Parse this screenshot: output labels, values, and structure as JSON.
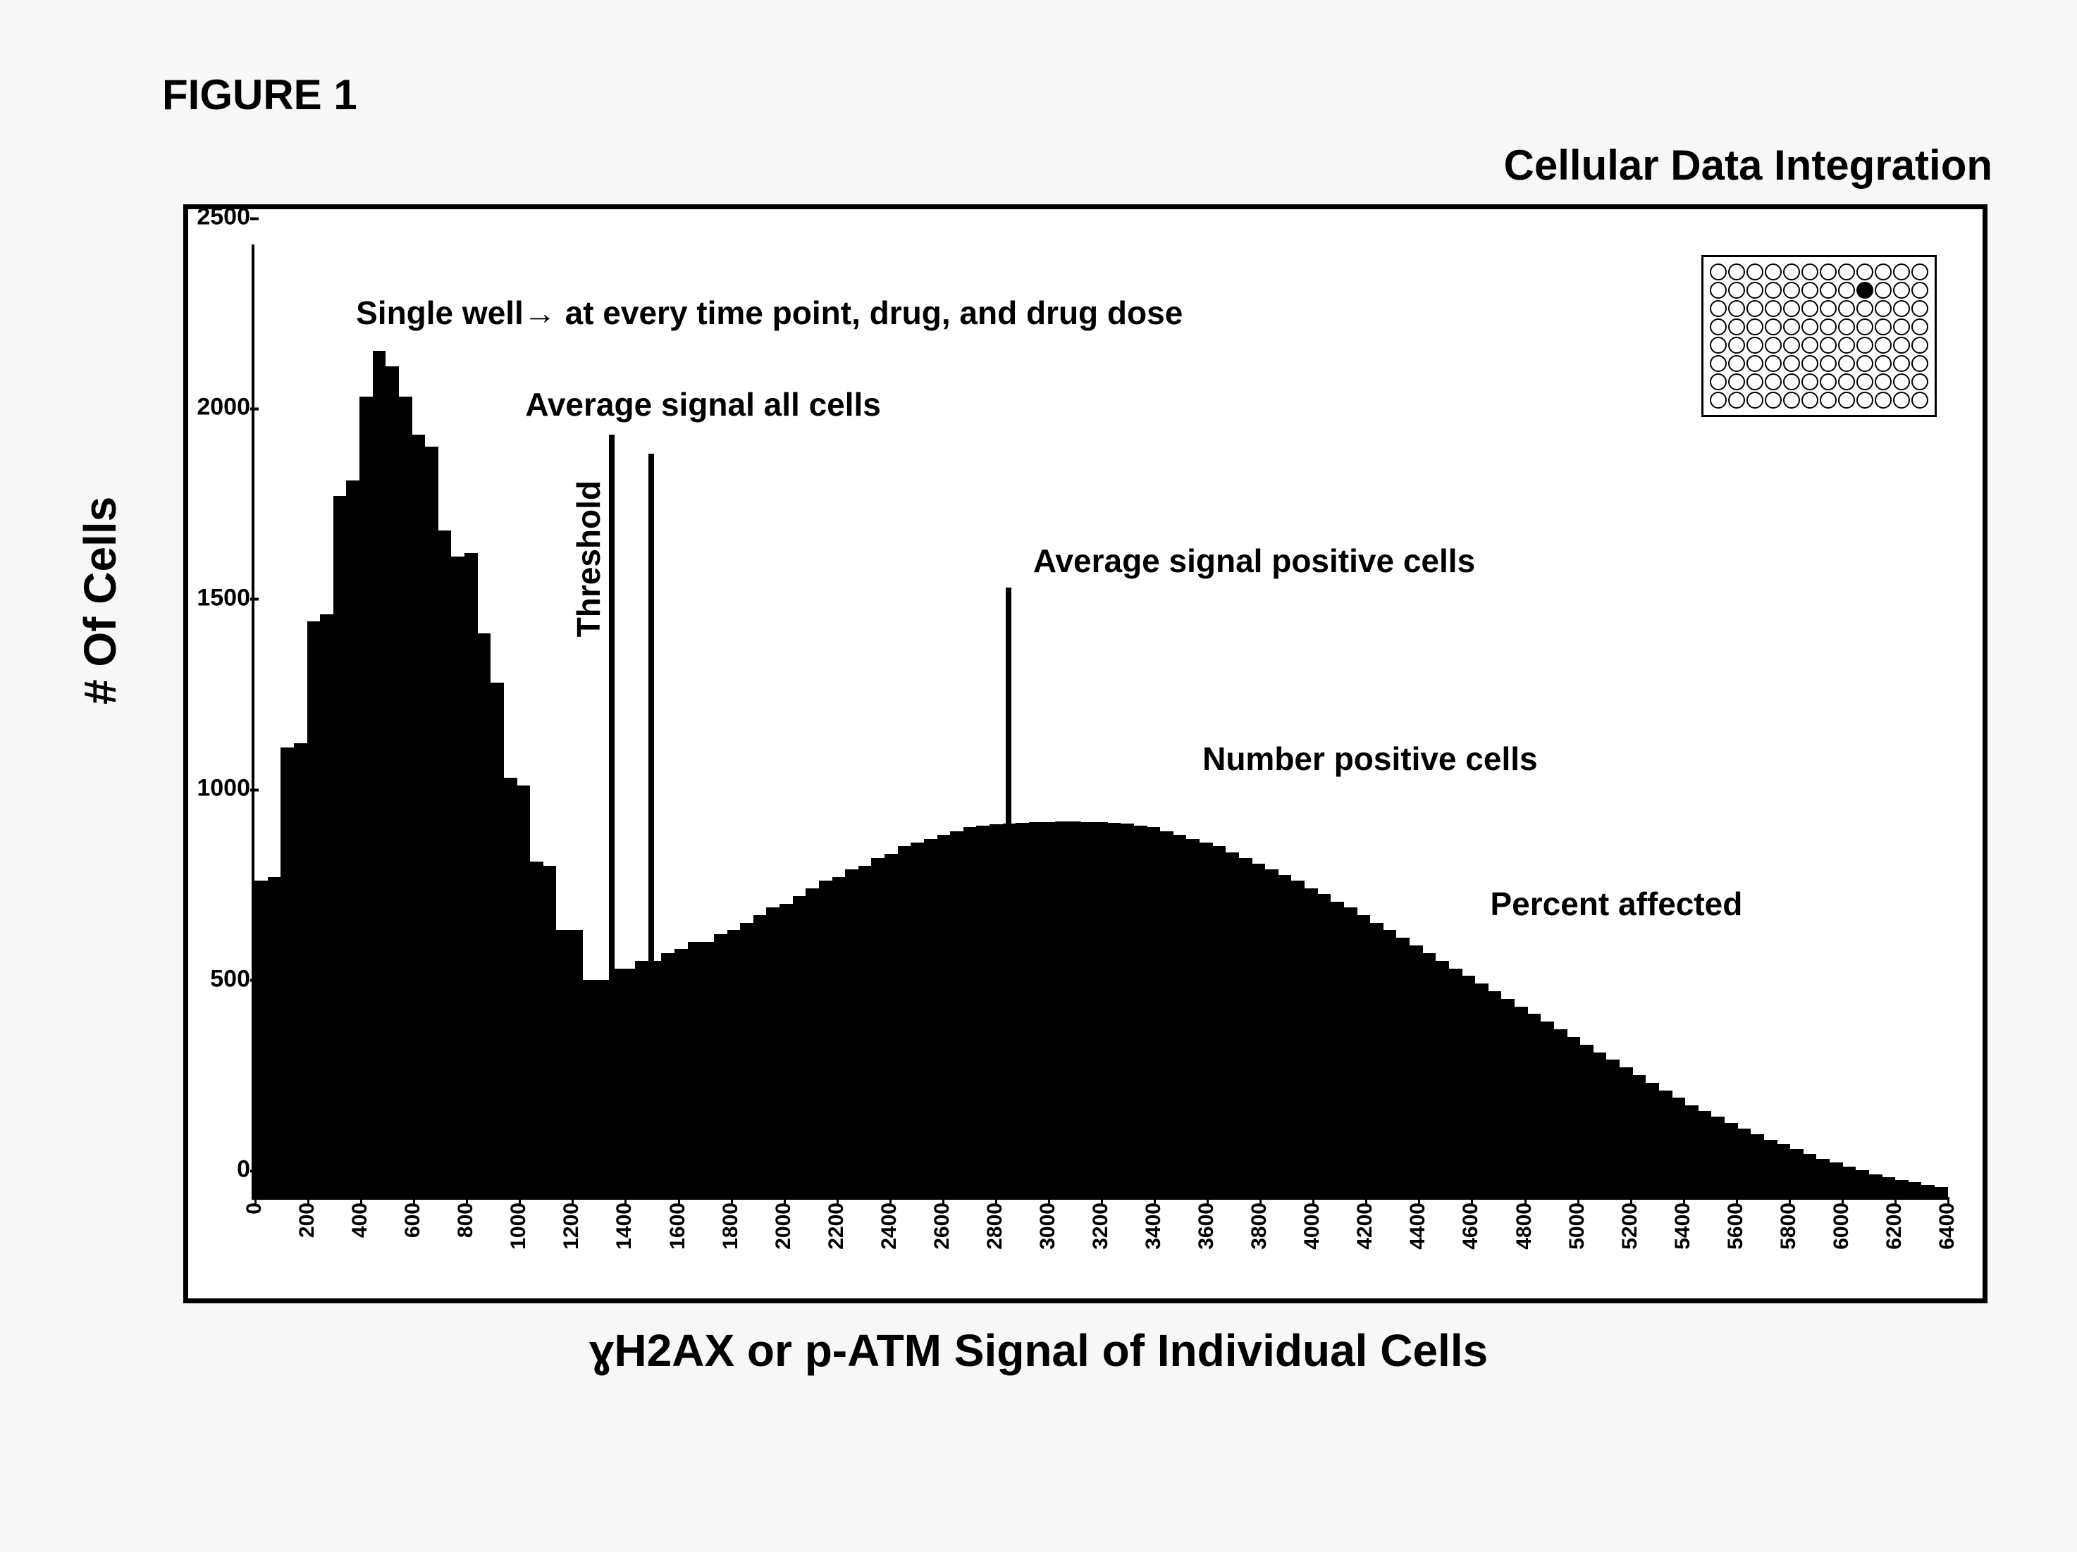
{
  "figure_label": "FIGURE 1",
  "supra_title": "Cellular Data Integration",
  "xlabel": "ɣH2AX or p-ATM Signal of Individual Cells",
  "ylabel": "# Of Cells",
  "colors": {
    "page_bg": "#f7f7f7",
    "frame_border": "#000000",
    "bar_fill": "#000000",
    "axis": "#000000",
    "text": "#000000"
  },
  "chart": {
    "type": "histogram",
    "ylim": [
      0,
      2500
    ],
    "ytick_step": 500,
    "yticks": [
      0,
      500,
      1000,
      1500,
      2000,
      2500
    ],
    "xlim": [
      0,
      6400
    ],
    "xtick_step": 200,
    "xticks": [
      0,
      200,
      400,
      600,
      800,
      1000,
      1200,
      1400,
      1600,
      1800,
      2000,
      2200,
      2400,
      2600,
      2800,
      3000,
      3200,
      3400,
      3600,
      3800,
      4000,
      4200,
      4400,
      4600,
      4800,
      5000,
      5200,
      5400,
      5600,
      5800,
      6000,
      6200,
      6400
    ],
    "bin_edges_step": 100,
    "bar_heights": [
      830,
      840,
      1180,
      1190,
      1510,
      1530,
      1840,
      1880,
      2100,
      2220,
      2180,
      2100,
      2000,
      1970,
      1750,
      1680,
      1690,
      1480,
      1350,
      1100,
      1080,
      880,
      870,
      700,
      700,
      570,
      570,
      600,
      600,
      620,
      620,
      640,
      650,
      670,
      670,
      690,
      700,
      720,
      740,
      760,
      770,
      790,
      810,
      830,
      840,
      860,
      870,
      890,
      900,
      920,
      930,
      940,
      950,
      960,
      970,
      975,
      978,
      980,
      982,
      983,
      984,
      985,
      985,
      984,
      983,
      982,
      980,
      975,
      970,
      960,
      950,
      940,
      930,
      920,
      905,
      890,
      875,
      860,
      845,
      830,
      810,
      795,
      775,
      760,
      740,
      720,
      700,
      680,
      660,
      640,
      620,
      600,
      580,
      560,
      540,
      520,
      500,
      480,
      460,
      440,
      420,
      400,
      380,
      360,
      340,
      320,
      300,
      280,
      260,
      240,
      225,
      210,
      195,
      180,
      165,
      150,
      138,
      125,
      113,
      100,
      90,
      80,
      70,
      60,
      52,
      45,
      38,
      32,
      26
    ],
    "marker_lines": {
      "threshold": {
        "x": 1350,
        "top_y": 2000,
        "label": "Threshold"
      },
      "avg_all": {
        "x": 1500,
        "top_y": 1950,
        "label": "Average signal all cells"
      },
      "avg_pos": {
        "x": 2850,
        "top_y": 1600,
        "label": "Average signal positive cells"
      }
    },
    "annotations": {
      "single_well": "Single well→ at every time point, drug, and drug dose",
      "num_pos": "Number positive cells",
      "pct_aff": "Percent affected"
    },
    "font": {
      "axis_label_size_pt": 48,
      "tick_size_pt": 24,
      "annotation_size_pt": 34,
      "weight": "bold"
    },
    "wellplate": {
      "rows": 8,
      "cols": 12,
      "filled": [
        [
          1,
          8
        ]
      ]
    }
  }
}
